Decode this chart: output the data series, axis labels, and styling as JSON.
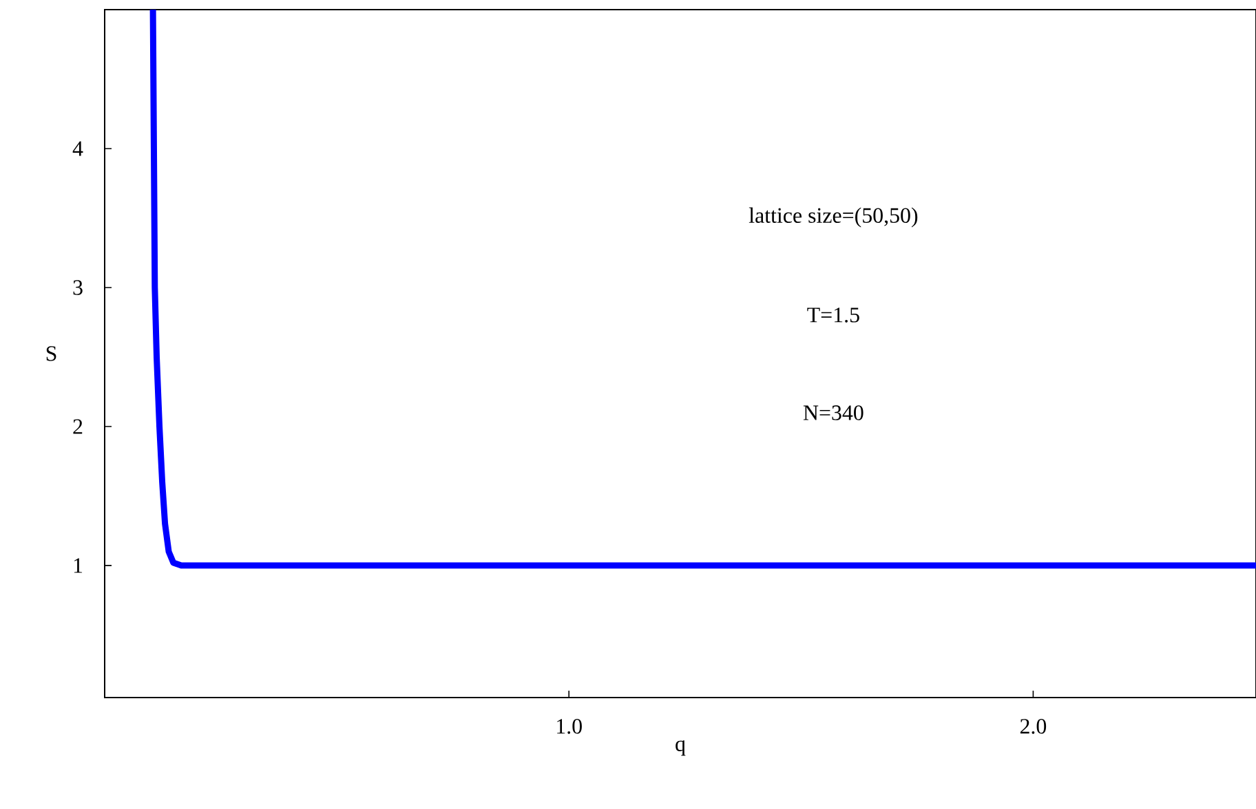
{
  "chart_data": {
    "type": "line",
    "xlabel": "q",
    "ylabel": "S",
    "annotations": [
      "lattice size=(50,50)",
      "T=1.5",
      "N=340"
    ],
    "x": [
      0.104,
      0.106,
      0.108,
      0.112,
      0.118,
      0.124,
      0.13,
      0.138,
      0.148,
      0.165,
      2.48
    ],
    "series": [
      {
        "color": "#0000ff",
        "values": [
          5.0,
          4.0,
          3.0,
          2.5,
          2.0,
          1.6,
          1.3,
          1.1,
          1.02,
          1.0,
          1.0
        ]
      }
    ],
    "xlim": [
      0,
      2.48
    ],
    "ylim": [
      0.05,
      5.0
    ],
    "xticks": [
      {
        "value": 1,
        "label": "1.0"
      },
      {
        "value": 2,
        "label": "2.0"
      }
    ],
    "yticks": [
      1,
      2,
      3,
      4
    ],
    "grid": false,
    "marker": "none",
    "line_style": "solid"
  }
}
